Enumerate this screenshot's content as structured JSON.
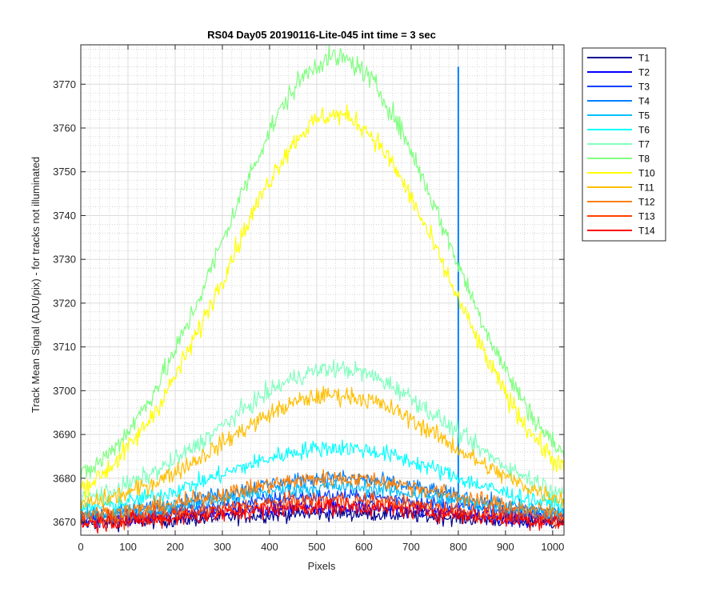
{
  "chart_data": {
    "type": "line",
    "title": "RS04 Day05 20190116-Lite-045 int time = 3 sec",
    "xlabel": "Pixels",
    "ylabel": "Track Mean Signal (ADU/pix) - for tracks not illuminated",
    "xlim": [
      0,
      1024
    ],
    "ylim": [
      3667,
      3779
    ],
    "xticks": [
      0,
      100,
      200,
      300,
      400,
      500,
      600,
      700,
      800,
      900,
      1000
    ],
    "yticks": [
      3670,
      3680,
      3690,
      3700,
      3710,
      3720,
      3730,
      3740,
      3750,
      3760,
      3770
    ],
    "grid": true,
    "minor_grid": true,
    "legend_position": "outside-right",
    "x_peak": 540,
    "x_width_sigma": 235,
    "series": [
      {
        "name": "T1",
        "color": "#00008f",
        "base": 3669.6,
        "peak": 3672.0,
        "noise": 1.2
      },
      {
        "name": "T2",
        "color": "#0000ff",
        "base": 3670.0,
        "peak": 3673.5,
        "noise": 1.2
      },
      {
        "name": "T3",
        "color": "#0040ff",
        "base": 3670.5,
        "peak": 3676.0,
        "noise": 1.2
      },
      {
        "name": "T4",
        "color": "#0080ff",
        "base": 3671.0,
        "peak": 3680.0,
        "noise": 1.3,
        "spike_x": 800,
        "spike_top": 3774.0
      },
      {
        "name": "T5",
        "color": "#00bfff",
        "base": 3671.0,
        "peak": 3678.0,
        "noise": 1.3
      },
      {
        "name": "T6",
        "color": "#00ffff",
        "base": 3672.0,
        "peak": 3687.0,
        "noise": 1.4
      },
      {
        "name": "T7",
        "color": "#80ffbf",
        "base": 3673.0,
        "peak": 3705.0,
        "noise": 1.5
      },
      {
        "name": "T8",
        "color": "#80ff80",
        "base": 3673.0,
        "peak": 3776.0,
        "noise": 1.8
      },
      {
        "name": "T10",
        "color": "#ffff00",
        "base": 3671.0,
        "peak": 3763.0,
        "noise": 1.7
      },
      {
        "name": "T11",
        "color": "#ffbf00",
        "base": 3672.0,
        "peak": 3699.0,
        "noise": 1.5
      },
      {
        "name": "T12",
        "color": "#ff8000",
        "base": 3671.0,
        "peak": 3680.0,
        "noise": 1.4
      },
      {
        "name": "T13",
        "color": "#ff4000",
        "base": 3670.0,
        "peak": 3675.0,
        "noise": 1.4
      },
      {
        "name": "T14",
        "color": "#ff0000",
        "base": 3669.5,
        "peak": 3673.5,
        "noise": 1.4
      }
    ]
  }
}
